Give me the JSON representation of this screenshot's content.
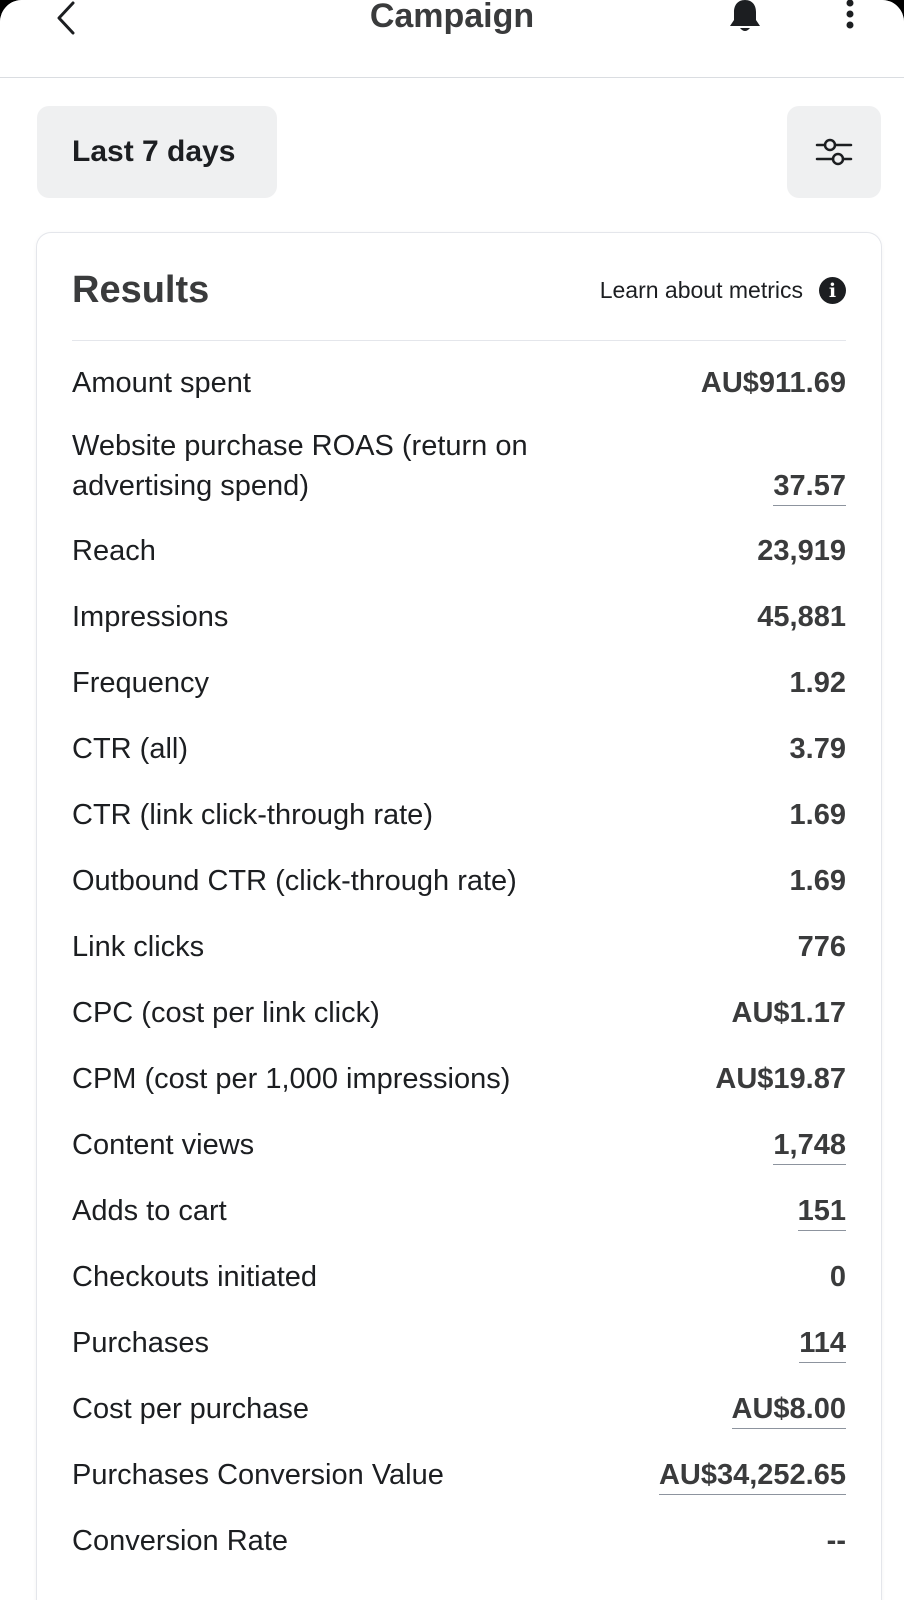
{
  "header": {
    "title": "Campaign",
    "back_icon": "chevron-left-icon",
    "bell_icon": "bell-icon",
    "more_icon": "more-vertical-icon"
  },
  "controls": {
    "date_range_label": "Last 7 days",
    "filter_icon": "sliders-icon"
  },
  "results": {
    "title": "Results",
    "learn_link": "Learn about metrics",
    "info_icon": "info-icon",
    "metrics": [
      {
        "label": "Amount spent",
        "value": "AU$911.69",
        "link": false
      },
      {
        "label": "Website purchase ROAS (return on advertising spend)",
        "value": "37.57",
        "link": true
      },
      {
        "label": "Reach",
        "value": "23,919",
        "link": false
      },
      {
        "label": "Impressions",
        "value": "45,881",
        "link": false
      },
      {
        "label": "Frequency",
        "value": "1.92",
        "link": false
      },
      {
        "label": "CTR (all)",
        "value": "3.79",
        "link": false
      },
      {
        "label": "CTR (link click-through rate)",
        "value": "1.69",
        "link": false
      },
      {
        "label": "Outbound CTR (click-through rate)",
        "value": "1.69",
        "link": false
      },
      {
        "label": "Link clicks",
        "value": "776",
        "link": false
      },
      {
        "label": "CPC (cost per link click)",
        "value": "AU$1.17",
        "link": false
      },
      {
        "label": "CPM (cost per 1,000 impressions)",
        "value": "AU$19.87",
        "link": false
      },
      {
        "label": "Content views",
        "value": "1,748",
        "link": true
      },
      {
        "label": "Adds to cart",
        "value": "151",
        "link": true
      },
      {
        "label": "Checkouts initiated",
        "value": "0",
        "link": false
      },
      {
        "label": "Purchases",
        "value": "114",
        "link": true
      },
      {
        "label": "Cost per purchase",
        "value": "AU$8.00",
        "link": true
      },
      {
        "label": "Purchases Conversion Value",
        "value": "AU$34,252.65",
        "link": true
      },
      {
        "label": "Conversion Rate",
        "value": "--",
        "link": false
      }
    ]
  }
}
